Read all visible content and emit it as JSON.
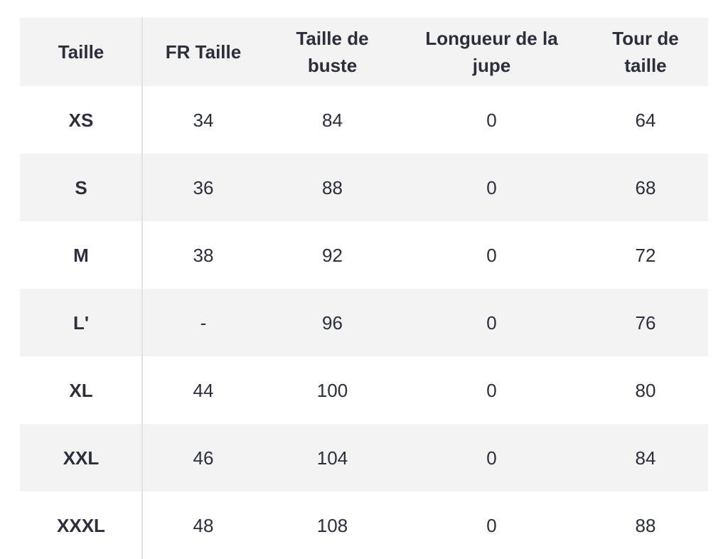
{
  "table": {
    "header": [
      "Taille",
      "FR Taille",
      "Taille de buste",
      "Longueur de la jupe",
      "Tour de taille"
    ],
    "rows": [
      [
        "XS",
        34,
        84,
        0,
        64
      ],
      [
        "S",
        36,
        88,
        0,
        68
      ],
      [
        "M",
        38,
        92,
        0,
        72
      ],
      [
        "L'",
        "-",
        96,
        0,
        76
      ],
      [
        "XL",
        44,
        100,
        0,
        80
      ],
      [
        "XXL",
        46,
        104,
        0,
        84
      ],
      [
        "XXXL",
        48,
        108,
        0,
        88
      ]
    ]
  }
}
